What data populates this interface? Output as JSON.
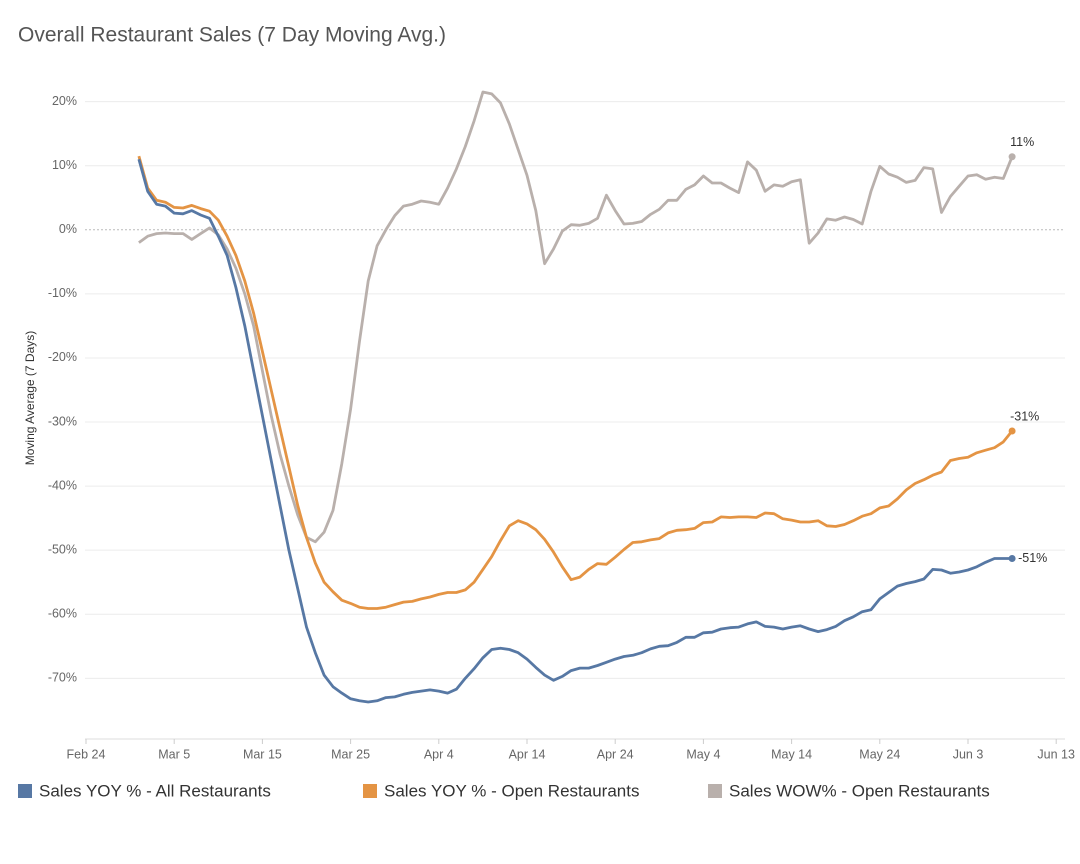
{
  "chart_data": {
    "type": "line",
    "title": "Overall Restaurant Sales (7 Day Moving Avg.)",
    "y_label": "Moving Average (7 Days)",
    "categories": [
      "Feb 24",
      null,
      null,
      null,
      null,
      null,
      null,
      null,
      null,
      null,
      "Mar 5",
      null,
      null,
      null,
      null,
      null,
      null,
      null,
      null,
      null,
      "Mar 15",
      null,
      null,
      null,
      null,
      null,
      null,
      null,
      null,
      null,
      "Mar 25",
      null,
      null,
      null,
      null,
      null,
      null,
      null,
      null,
      null,
      "Apr 4",
      null,
      null,
      null,
      null,
      null,
      null,
      null,
      null,
      null,
      "Apr 14",
      null,
      null,
      null,
      null,
      null,
      null,
      null,
      null,
      null,
      "Apr 24",
      null,
      null,
      null,
      null,
      null,
      null,
      null,
      null,
      null,
      "May 4",
      null,
      null,
      null,
      null,
      null,
      null,
      null,
      null,
      null,
      "May 14",
      null,
      null,
      null,
      null,
      null,
      null,
      null,
      null,
      null,
      "May 24",
      null,
      null,
      null,
      null,
      null,
      null,
      null,
      null,
      null,
      "Jun 3",
      null,
      null,
      null,
      null,
      null,
      null,
      null,
      null,
      null,
      "Jun 13"
    ],
    "ylim": [
      -79,
      24
    ],
    "yticks": [
      {
        "value": 20,
        "label": "20%"
      },
      {
        "value": 10,
        "label": "10%"
      },
      {
        "value": 0,
        "label": "0%"
      },
      {
        "value": -10,
        "label": "-10%"
      },
      {
        "value": -20,
        "label": "-20%"
      },
      {
        "value": -30,
        "label": "-30%"
      },
      {
        "value": -40,
        "label": "-40%"
      },
      {
        "value": -50,
        "label": "-50%"
      },
      {
        "value": -60,
        "label": "-60%"
      },
      {
        "value": -70,
        "label": "-70%"
      }
    ],
    "grid": true,
    "series": [
      {
        "name": "Sales YOY % - All Restaurants",
        "color": "#5778a4",
        "values": [
          null,
          null,
          null,
          null,
          null,
          null,
          11,
          6,
          4,
          3.7,
          2.6,
          2.5,
          3,
          2.3,
          1.8,
          -1,
          -4,
          -9,
          -15,
          -22,
          -29,
          -36,
          -43,
          -50,
          -56,
          -62,
          -66,
          -69.5,
          -71.3,
          -72.3,
          -73.2,
          -73.5,
          -73.7,
          -73.5,
          -73,
          -72.9,
          -72.5,
          -72.2,
          -72,
          -71.8,
          -72,
          -72.3,
          -71.7,
          -70,
          -68.5,
          -66.8,
          -65.5,
          -65.3,
          -65.5,
          -66,
          -67,
          -68.3,
          -69.5,
          -70.3,
          -69.7,
          -68.8,
          -68.4,
          -68.4,
          -68,
          -67.5,
          -67,
          -66.6,
          -66.4,
          -66,
          -65.4,
          -65,
          -64.9,
          -64.4,
          -63.6,
          -63.6,
          -62.9,
          -62.8,
          -62.3,
          -62.1,
          -62,
          -61.5,
          -61.2,
          -61.9,
          -62,
          -62.3,
          -62,
          -61.8,
          -62.3,
          -62.7,
          -62.4,
          -61.9,
          -61,
          -60.4,
          -59.6,
          -59.3,
          -57.6,
          -56.6,
          -55.6,
          -55.2,
          -54.9,
          -54.5,
          -53,
          -53.1,
          -53.6,
          -53.4,
          -53.1,
          -52.6,
          -51.9,
          -51.3,
          -51.3,
          -51.3,
          null,
          null,
          null,
          null,
          null
        ],
        "value_labels": [
          null,
          null,
          null,
          null,
          null,
          null,
          null,
          null,
          null,
          null,
          null,
          null,
          null,
          null,
          null,
          null,
          null,
          null,
          null,
          null,
          null,
          null,
          null,
          null,
          null,
          null,
          null,
          null,
          null,
          null,
          null,
          null,
          null,
          null,
          null,
          null,
          null,
          null,
          null,
          null,
          null,
          null,
          null,
          null,
          null,
          null,
          null,
          null,
          null,
          null,
          null,
          null,
          null,
          null,
          null,
          null,
          null,
          null,
          null,
          null,
          null,
          null,
          null,
          null,
          null,
          null,
          null,
          null,
          null,
          null,
          null,
          null,
          null,
          null,
          null,
          null,
          null,
          null,
          null,
          null,
          null,
          null,
          null,
          null,
          null,
          null,
          null,
          null,
          null,
          null,
          null,
          null,
          null,
          null,
          null,
          null,
          null,
          null,
          null,
          null,
          null,
          null,
          null,
          null,
          null,
          "-51%",
          null,
          null,
          null,
          null,
          null
        ]
      },
      {
        "name": "Sales YOY % - Open Restaurants",
        "color": "#e49444",
        "values": [
          null,
          null,
          null,
          null,
          null,
          null,
          11.5,
          6.5,
          4.6,
          4.3,
          3.5,
          3.4,
          3.8,
          3.3,
          2.9,
          1.5,
          -1,
          -4,
          -8,
          -13,
          -19,
          -25,
          -31,
          -37,
          -43,
          -48,
          -52,
          -55,
          -56.5,
          -57.8,
          -58.3,
          -58.9,
          -59.1,
          -59.1,
          -58.9,
          -58.5,
          -58.1,
          -58,
          -57.6,
          -57.3,
          -56.9,
          -56.6,
          -56.6,
          -56.2,
          -55,
          -53,
          -51,
          -48.5,
          -46.2,
          -45.4,
          -45.9,
          -46.8,
          -48.3,
          -50.3,
          -52.6,
          -54.6,
          -54.2,
          -53,
          -52.1,
          -52.2,
          -51.1,
          -49.9,
          -48.8,
          -48.7,
          -48.4,
          -48.2,
          -47.3,
          -46.9,
          -46.8,
          -46.6,
          -45.7,
          -45.6,
          -44.8,
          -44.9,
          -44.8,
          -44.8,
          -44.9,
          -44.2,
          -44.3,
          -45.1,
          -45.3,
          -45.6,
          -45.6,
          -45.4,
          -46.2,
          -46.3,
          -46,
          -45.4,
          -44.7,
          -44.3,
          -43.4,
          -43.1,
          -42,
          -40.6,
          -39.6,
          -39,
          -38.3,
          -37.8,
          -36,
          -35.7,
          -35.5,
          -34.8,
          -34.4,
          -34,
          -33.1,
          -31.4,
          null,
          null,
          null,
          null,
          null
        ],
        "value_labels": [
          null,
          null,
          null,
          null,
          null,
          null,
          null,
          null,
          null,
          null,
          null,
          null,
          null,
          null,
          null,
          null,
          null,
          null,
          null,
          null,
          null,
          null,
          null,
          null,
          null,
          null,
          null,
          null,
          null,
          null,
          null,
          null,
          null,
          null,
          null,
          null,
          null,
          null,
          null,
          null,
          null,
          null,
          null,
          null,
          null,
          null,
          null,
          null,
          null,
          null,
          null,
          null,
          null,
          null,
          null,
          null,
          null,
          null,
          null,
          null,
          null,
          null,
          null,
          null,
          null,
          null,
          null,
          null,
          null,
          null,
          null,
          null,
          null,
          null,
          null,
          null,
          null,
          null,
          null,
          null,
          null,
          null,
          null,
          null,
          null,
          null,
          null,
          null,
          null,
          null,
          null,
          null,
          null,
          null,
          null,
          null,
          null,
          null,
          null,
          null,
          null,
          null,
          null,
          null,
          null,
          "-31%",
          null,
          null,
          null,
          null,
          null
        ]
      },
      {
        "name": "Sales WOW% - Open Restaurants",
        "color": "#b9b0ac",
        "values": [
          null,
          null,
          null,
          null,
          null,
          null,
          -2,
          -1,
          -0.6,
          -0.5,
          -0.6,
          -0.6,
          -1.5,
          -0.6,
          0.3,
          -0.8,
          -3,
          -6,
          -10,
          -15,
          -22,
          -29,
          -35,
          -40,
          -44.5,
          -48,
          -48.7,
          -47.2,
          -43.8,
          -36.5,
          -28,
          -17.5,
          -8,
          -2.5,
          0,
          2.2,
          3.7,
          4,
          4.5,
          4.3,
          4,
          6.5,
          9.5,
          13,
          17,
          21.5,
          21.2,
          19.8,
          16.5,
          12.5,
          8.5,
          3,
          -5.3,
          -3,
          -0.2,
          0.8,
          0.7,
          1,
          1.8,
          5.4,
          3,
          0.9,
          1,
          1.3,
          2.4,
          3.2,
          4.6,
          4.6,
          6.3,
          7,
          8.4,
          7.3,
          7.3,
          6.5,
          5.8,
          10.6,
          9.3,
          6,
          7,
          6.8,
          7.5,
          7.8,
          -2.1,
          -0.5,
          1.7,
          1.5,
          2,
          1.6,
          0.9,
          6,
          9.9,
          8.7,
          8.2,
          7.4,
          7.7,
          9.7,
          9.5,
          2.7,
          5.2,
          6.8,
          8.4,
          8.6,
          7.9,
          8.2,
          8,
          11.4,
          null,
          null,
          null,
          null,
          null
        ],
        "value_labels": [
          null,
          null,
          null,
          null,
          null,
          null,
          null,
          null,
          null,
          null,
          null,
          null,
          null,
          null,
          null,
          null,
          null,
          null,
          null,
          null,
          null,
          null,
          null,
          null,
          null,
          null,
          null,
          null,
          null,
          null,
          null,
          null,
          null,
          null,
          null,
          null,
          null,
          null,
          null,
          null,
          null,
          null,
          null,
          null,
          null,
          null,
          null,
          null,
          null,
          null,
          null,
          null,
          null,
          null,
          null,
          null,
          null,
          null,
          null,
          null,
          null,
          null,
          null,
          null,
          null,
          null,
          null,
          null,
          null,
          null,
          null,
          null,
          null,
          null,
          null,
          null,
          null,
          null,
          null,
          null,
          null,
          null,
          null,
          null,
          null,
          null,
          null,
          null,
          null,
          null,
          null,
          null,
          null,
          null,
          null,
          null,
          null,
          null,
          null,
          null,
          null,
          null,
          null,
          null,
          null,
          "11%",
          null,
          null,
          null,
          null,
          null
        ]
      }
    ]
  }
}
